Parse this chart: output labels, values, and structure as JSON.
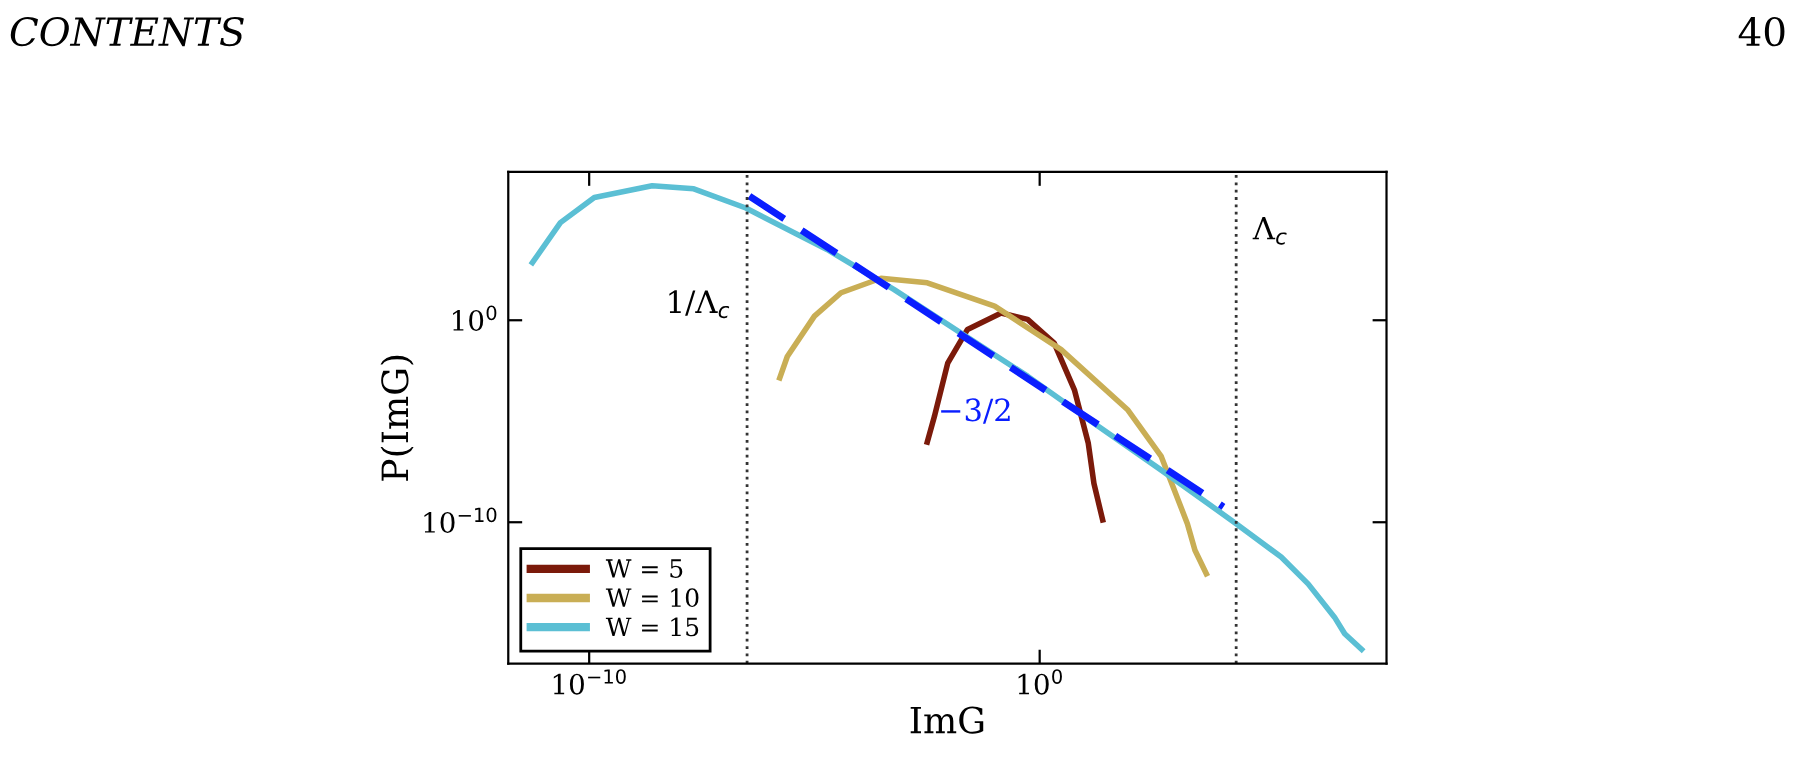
{
  "chart_data": {
    "type": "line",
    "xlabel": "ImG",
    "ylabel": "P(ImG)",
    "log": "xy",
    "grid": false,
    "legend": "bottom left",
    "marker": "none",
    "xlim": [
      1.6e-12,
      50000000.0
    ],
    "ylim": [
      1e-17,
      22000000.0
    ],
    "xticks": [
      {
        "value": 1e-10,
        "label": "10$^{−10}$"
      },
      {
        "value": 1,
        "label": "10$^{0}$"
      }
    ],
    "yticks": [
      {
        "value": 1e-10,
        "label": "10$^{−10}$"
      },
      {
        "value": 1,
        "label": "10$^{0}$"
      }
    ],
    "series": [
      {
        "name": "W = 5",
        "color": "#7b1a0a",
        "x": [
          0.0032,
          0.0046,
          0.0091,
          0.025,
          0.14,
          0.54,
          2.1,
          5.9,
          12,
          16,
          25
        ],
        "values": [
          9.3e-07,
          1.7e-05,
          0.0076,
          0.35,
          2.3,
          1.1,
          0.074,
          0.00036,
          8.1e-07,
          8.3e-09,
          1.3e-10
        ]
      },
      {
        "name": "W = 10",
        "color": "#c9ae55",
        "x": [
          1.7e-06,
          2.5e-06,
          1e-05,
          3.9e-05,
          0.0003,
          0.0032,
          0.1,
          3.0,
          91,
          500,
          1900.0,
          2800.0,
          5000.0
        ],
        "values": [
          0.0014,
          0.016,
          1.6,
          23,
          120,
          71,
          5.0,
          0.035,
          3.6e-05,
          1.8e-07,
          8.5e-11,
          4.1e-12,
          2.8e-13
        ]
      },
      {
        "name": "W = 15",
        "color": "#5bbfd4",
        "x": [
          5.5e-12,
          2.3e-11,
          1.3e-10,
          2.5e-09,
          2.1e-08,
          3e-07,
          1.9e-05,
          0.00059,
          0.018,
          0.54,
          16,
          500,
          23000.0,
          230000.0,
          910000.0,
          3500000.0,
          5900000.0,
          14000000.0
        ],
        "values": [
          710,
          68000.0,
          1200000.0,
          4600000.0,
          3200000.0,
          360000.0,
          3200.0,
          33,
          0.23,
          0.0017,
          7.9e-06,
          3.8e-08,
          8.5e-11,
          1.9e-12,
          8.9e-14,
          2e-15,
          3e-16,
          5.1e-17
        ]
      },
      {
        "type": "line",
        "line_style": "dashed",
        "color": "#0a1eff",
        "x": [
          3.6e-07,
          12000.0
        ],
        "values": [
          1400000.0,
          5.8e-10
        ]
      }
    ],
    "ref_lines": [
      {
        "axis": "x",
        "value": 3.2e-07,
        "line_style": "dotted",
        "color": "#333333",
        "label": "1/Λ$_{c}$"
      },
      {
        "axis": "x",
        "value": 23000.0,
        "line_style": "dotted",
        "color": "#333333",
        "label": "Λ$_{c}$"
      }
    ],
    "annotations": [
      "CONTENTS",
      "40",
      "−3/2"
    ]
  }
}
